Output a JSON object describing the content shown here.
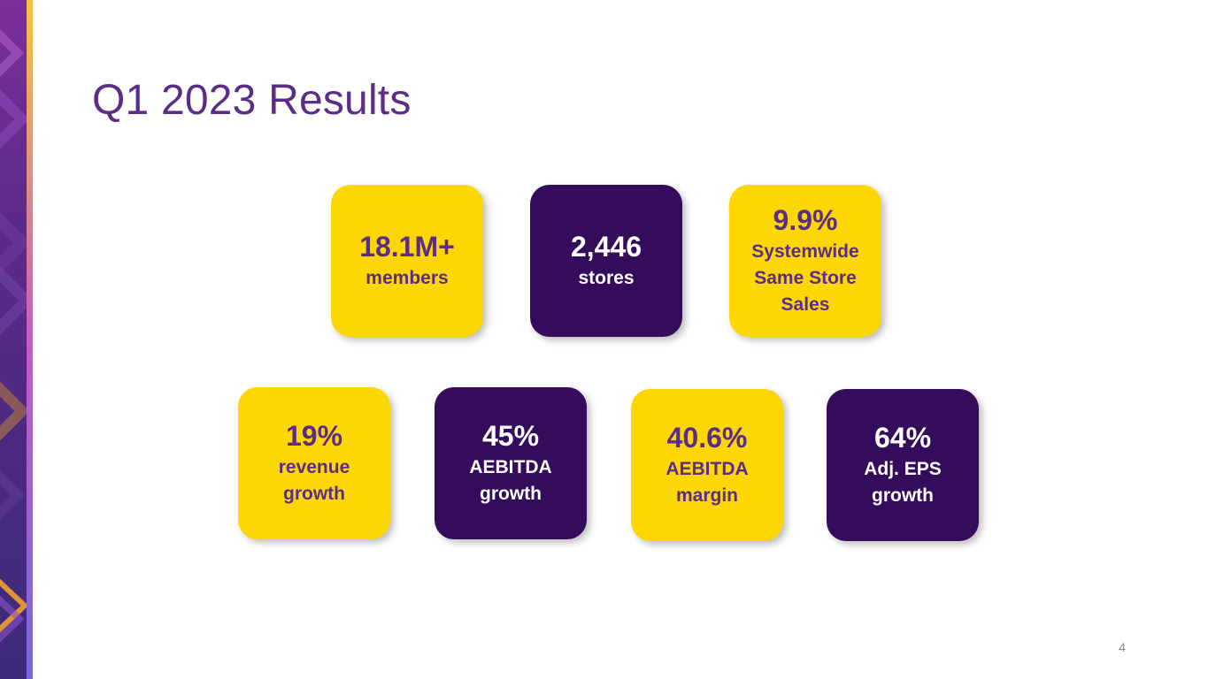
{
  "slide": {
    "title": "Q1 2023 Results",
    "page_number": "4"
  },
  "tiles": [
    {
      "metric": "18.1M+",
      "caption": "members",
      "color": "#fcd703"
    },
    {
      "metric": "2,446",
      "caption": "stores",
      "color": "#350b5c"
    },
    {
      "metric": "9.9%",
      "caption": "Systemwide Same Store Sales",
      "color": "#fcd703"
    },
    {
      "metric": "19%",
      "caption": "revenue growth",
      "color": "#fcd703"
    },
    {
      "metric": "45%",
      "caption": "AEBITDA growth",
      "color": "#350b5c"
    },
    {
      "metric": "40.6%",
      "caption": "AEBITDA margin",
      "color": "#fcd703"
    },
    {
      "metric": "64%",
      "caption": "Adj. EPS growth",
      "color": "#350b5c"
    }
  ],
  "theme": {
    "title_color": "#5b2d86",
    "yellow": "#fcd703",
    "dark_purple": "#350b5c"
  }
}
